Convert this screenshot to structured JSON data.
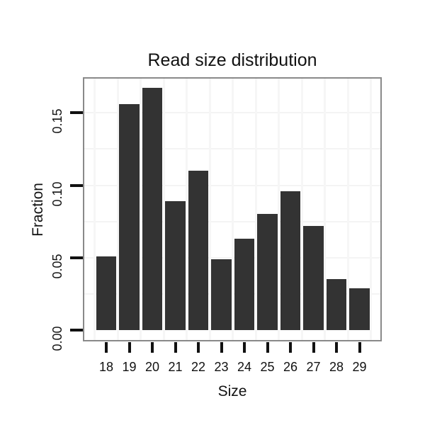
{
  "title": "Read size distribution",
  "chart_data": {
    "type": "bar",
    "title": "Read size distribution",
    "xlabel": "Size",
    "ylabel": "Fraction",
    "categories": [
      "18",
      "19",
      "20",
      "21",
      "22",
      "23",
      "24",
      "25",
      "26",
      "27",
      "28",
      "29"
    ],
    "values": [
      0.051,
      0.156,
      0.167,
      0.089,
      0.11,
      0.049,
      0.063,
      0.08,
      0.096,
      0.072,
      0.035,
      0.029
    ],
    "yticks": [
      0.0,
      0.05,
      0.1,
      0.15
    ],
    "ytick_labels": [
      "0.00",
      "0.05",
      "0.10",
      "0.15"
    ],
    "ylim": [
      0,
      0.1745
    ],
    "grid": {
      "horizontal_step": 0.025,
      "vertical": "category-boundaries",
      "visible": true
    },
    "legend": "none",
    "colors": {
      "bar": "#333333",
      "panel_border": "#898989",
      "grid_h": "#f4f4f4",
      "grid_v": "#f6f6f6",
      "tick": "#111111",
      "text": "#111111",
      "background": "#ffffff"
    }
  }
}
